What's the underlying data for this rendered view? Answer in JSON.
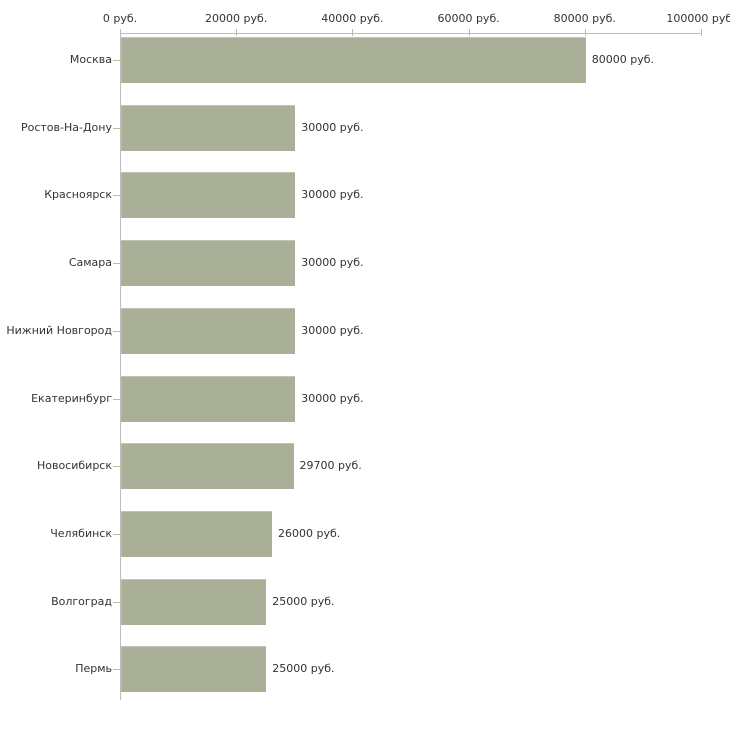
{
  "chart_data": {
    "type": "bar",
    "orientation": "horizontal",
    "categories": [
      "Москва",
      "Ростов-На-Дону",
      "Красноярск",
      "Самара",
      "Нижний Новгород",
      "Екатеринбург",
      "Новосибирск",
      "Челябинск",
      "Волгоград",
      "Пермь"
    ],
    "values": [
      80000,
      30000,
      30000,
      30000,
      30000,
      30000,
      29700,
      26000,
      25000,
      25000
    ],
    "value_labels": [
      "80000 руб.",
      "30000 руб.",
      "30000 руб.",
      "30000 руб.",
      "30000 руб.",
      "30000 руб.",
      "29700 руб.",
      "26000 руб.",
      "25000 руб.",
      "25000 руб."
    ],
    "x_axis": {
      "position": "top",
      "min": 0,
      "max": 100000,
      "ticks": [
        0,
        20000,
        40000,
        60000,
        80000,
        100000
      ],
      "tick_labels": [
        "0 руб.",
        "20000 руб.",
        "40000 руб.",
        "60000 руб.",
        "80000 руб.",
        "100000 руб."
      ]
    },
    "legend": "none",
    "grid": "off",
    "colors": {
      "bar": "#a9b097",
      "axis_line": "#bdbdbd",
      "tick": "#bfbf94",
      "text": "#333333",
      "background": "#ffffff"
    }
  }
}
